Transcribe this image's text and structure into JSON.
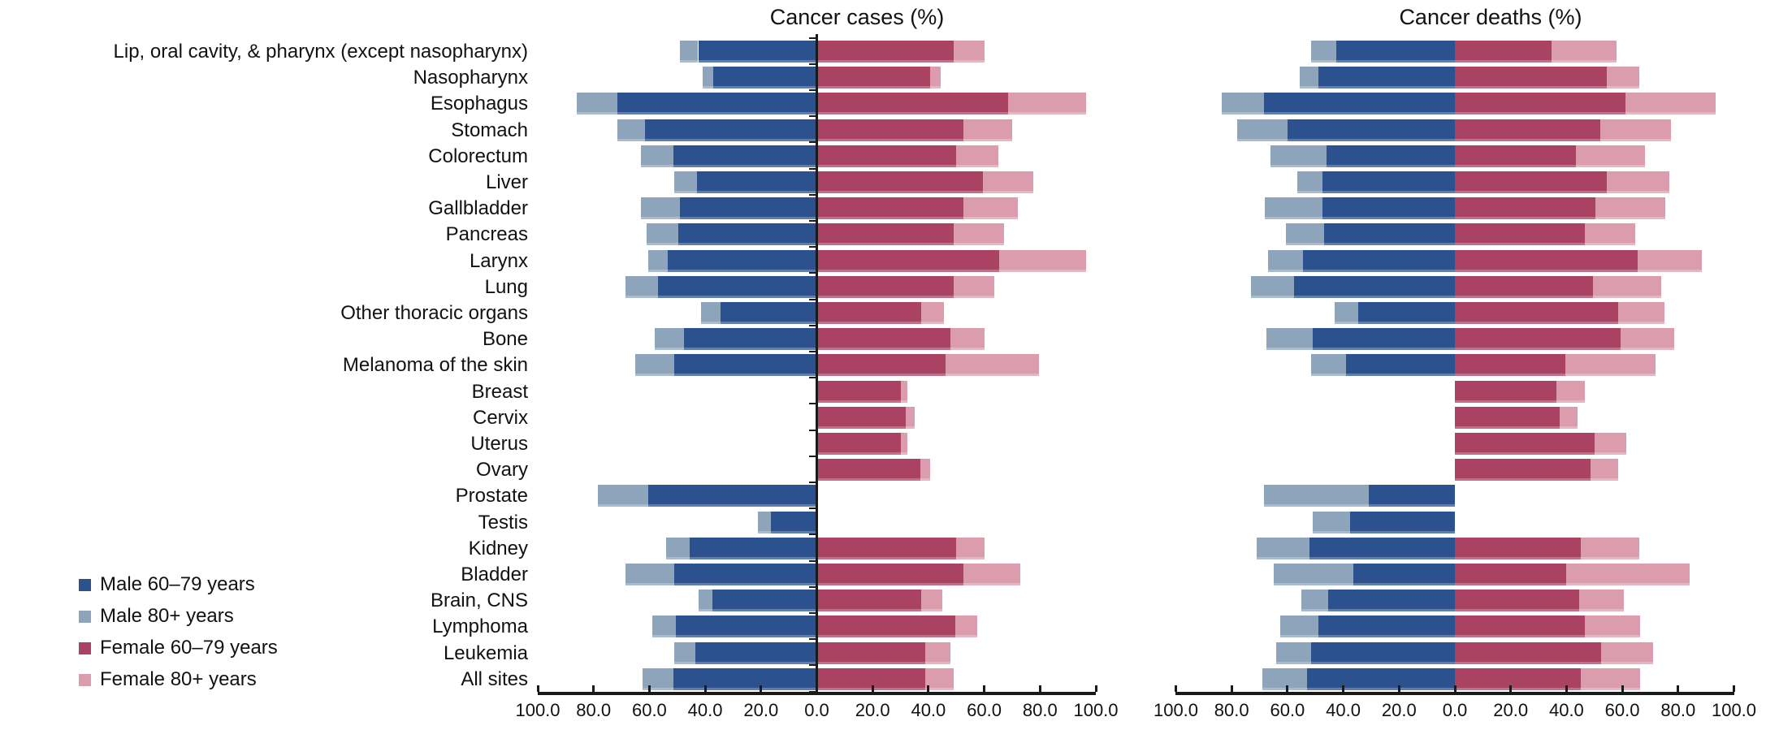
{
  "chart_data": {
    "type": "bar",
    "variant": "diverging-stacked-horizontal-tornado",
    "panels": [
      {
        "key": "cases",
        "title": "Cancer cases (%)"
      },
      {
        "key": "deaths",
        "title": "Cancer deaths (%)"
      }
    ],
    "legend": [
      {
        "label": "Male 60–79 years",
        "color": "#2B528F"
      },
      {
        "label": "Male 80+ years",
        "color": "#8EA4BA"
      },
      {
        "label": "Female 60–79 years",
        "color": "#A94263"
      },
      {
        "label": "Female 80+ years",
        "color": "#DB9CAE"
      }
    ],
    "legend_position": "bottom-left",
    "x_axis": {
      "range": [
        -100,
        100
      ],
      "tick_step": 20,
      "tick_labels": [
        "100.0",
        "80.0",
        "60.0",
        "40.0",
        "20.0",
        "0.0",
        "20.0",
        "40.0",
        "60.0",
        "80.0",
        "100.0"
      ]
    },
    "value_meaning": "percent of cancer cases/deaths occurring in each sex and age group; male bars extend left of zero, female bars extend right",
    "rows": [
      {
        "label": "Lip, oral cavity, & pharynx (except nasopharynx)",
        "cases": {
          "male": [
            42.5,
            6.5
          ],
          "female": [
            49.0,
            11.0
          ]
        },
        "deaths": {
          "male": [
            42.5,
            9.0
          ],
          "female": [
            34.5,
            23.5
          ]
        }
      },
      {
        "label": "Nasopharynx",
        "cases": {
          "male": [
            37.0,
            4.0
          ],
          "female": [
            40.5,
            4.0
          ]
        },
        "deaths": {
          "male": [
            49.0,
            6.5
          ],
          "female": [
            54.5,
            11.5
          ]
        }
      },
      {
        "label": "Esophagus",
        "cases": {
          "male": [
            71.5,
            14.5
          ],
          "female": [
            68.5,
            28.0
          ]
        },
        "deaths": {
          "male": [
            68.5,
            15.0
          ],
          "female": [
            61.0,
            32.5
          ]
        }
      },
      {
        "label": "Stomach",
        "cases": {
          "male": [
            61.5,
            10.0
          ],
          "female": [
            52.5,
            17.5
          ]
        },
        "deaths": {
          "male": [
            60.0,
            18.0
          ],
          "female": [
            52.0,
            25.5
          ]
        }
      },
      {
        "label": "Colorectum",
        "cases": {
          "male": [
            51.5,
            11.5
          ],
          "female": [
            50.0,
            15.0
          ]
        },
        "deaths": {
          "male": [
            46.0,
            20.0
          ],
          "female": [
            43.5,
            24.5
          ]
        }
      },
      {
        "label": "Liver",
        "cases": {
          "male": [
            43.0,
            8.0
          ],
          "female": [
            59.5,
            18.0
          ]
        },
        "deaths": {
          "male": [
            47.5,
            9.0
          ],
          "female": [
            54.5,
            22.5
          ]
        }
      },
      {
        "label": "Gallbladder",
        "cases": {
          "male": [
            49.0,
            14.0
          ],
          "female": [
            52.5,
            19.5
          ]
        },
        "deaths": {
          "male": [
            47.5,
            20.5
          ],
          "female": [
            50.5,
            25.0
          ]
        }
      },
      {
        "label": "Pancreas",
        "cases": {
          "male": [
            49.5,
            11.5
          ],
          "female": [
            49.0,
            18.0
          ]
        },
        "deaths": {
          "male": [
            47.0,
            13.5
          ],
          "female": [
            46.5,
            18.0
          ]
        }
      },
      {
        "label": "Larynx",
        "cases": {
          "male": [
            53.5,
            7.0
          ],
          "female": [
            65.5,
            31.0
          ]
        },
        "deaths": {
          "male": [
            54.5,
            12.5
          ],
          "female": [
            65.5,
            23.0
          ]
        }
      },
      {
        "label": "Lung",
        "cases": {
          "male": [
            57.0,
            11.5
          ],
          "female": [
            49.0,
            14.5
          ]
        },
        "deaths": {
          "male": [
            57.5,
            15.5
          ],
          "female": [
            49.5,
            24.5
          ]
        }
      },
      {
        "label": "Other thoracic organs",
        "cases": {
          "male": [
            34.5,
            7.0
          ],
          "female": [
            37.5,
            8.0
          ]
        },
        "deaths": {
          "male": [
            34.5,
            8.5
          ],
          "female": [
            58.5,
            16.5
          ]
        }
      },
      {
        "label": "Bone",
        "cases": {
          "male": [
            47.5,
            10.5
          ],
          "female": [
            48.0,
            12.0
          ]
        },
        "deaths": {
          "male": [
            51.0,
            16.5
          ],
          "female": [
            59.5,
            19.0
          ]
        }
      },
      {
        "label": "Melanoma of the skin",
        "cases": {
          "male": [
            51.0,
            14.0
          ],
          "female": [
            46.0,
            33.5
          ]
        },
        "deaths": {
          "male": [
            39.0,
            12.5
          ],
          "female": [
            39.5,
            32.5
          ]
        }
      },
      {
        "label": "Breast",
        "cases": {
          "male": null,
          "female": [
            30.0,
            2.5
          ]
        },
        "deaths": {
          "male": null,
          "female": [
            36.5,
            10.0
          ]
        }
      },
      {
        "label": "Cervix",
        "cases": {
          "male": null,
          "female": [
            32.0,
            3.0
          ]
        },
        "deaths": {
          "male": null,
          "female": [
            37.5,
            6.5
          ]
        }
      },
      {
        "label": "Uterus",
        "cases": {
          "male": null,
          "female": [
            30.0,
            2.5
          ]
        },
        "deaths": {
          "male": null,
          "female": [
            50.0,
            11.5
          ]
        }
      },
      {
        "label": "Ovary",
        "cases": {
          "male": null,
          "female": [
            37.0,
            3.5
          ]
        },
        "deaths": {
          "male": null,
          "female": [
            48.5,
            10.0
          ]
        }
      },
      {
        "label": "Prostate",
        "cases": {
          "male": [
            60.5,
            18.0
          ],
          "female": null
        },
        "deaths": {
          "male": [
            31.0,
            37.5
          ],
          "female": null
        }
      },
      {
        "label": "Testis",
        "cases": {
          "male": [
            16.5,
            4.5
          ],
          "female": null
        },
        "deaths": {
          "male": [
            37.5,
            13.5
          ],
          "female": null
        }
      },
      {
        "label": "Kidney",
        "cases": {
          "male": [
            45.5,
            8.5
          ],
          "female": [
            50.0,
            10.0
          ]
        },
        "deaths": {
          "male": [
            52.0,
            19.0
          ],
          "female": [
            45.0,
            21.0
          ]
        }
      },
      {
        "label": "Bladder",
        "cases": {
          "male": [
            51.0,
            17.5
          ],
          "female": [
            52.5,
            20.5
          ]
        },
        "deaths": {
          "male": [
            36.5,
            28.5
          ],
          "female": [
            40.0,
            44.0
          ]
        }
      },
      {
        "label": "Brain, CNS",
        "cases": {
          "male": [
            37.5,
            5.0
          ],
          "female": [
            37.5,
            7.5
          ]
        },
        "deaths": {
          "male": [
            45.5,
            9.5
          ],
          "female": [
            44.5,
            16.0
          ]
        }
      },
      {
        "label": "Lymphoma",
        "cases": {
          "male": [
            50.5,
            8.5
          ],
          "female": [
            49.5,
            8.0
          ]
        },
        "deaths": {
          "male": [
            49.0,
            13.5
          ],
          "female": [
            46.5,
            20.0
          ]
        }
      },
      {
        "label": "Leukemia",
        "cases": {
          "male": [
            43.5,
            7.5
          ],
          "female": [
            39.0,
            9.0
          ]
        },
        "deaths": {
          "male": [
            51.5,
            12.5
          ],
          "female": [
            52.5,
            18.5
          ]
        }
      },
      {
        "label": "All sites",
        "cases": {
          "male": [
            51.5,
            11.0
          ],
          "female": [
            39.0,
            10.0
          ]
        },
        "deaths": {
          "male": [
            53.0,
            16.0
          ],
          "female": [
            45.0,
            21.5
          ]
        }
      }
    ]
  }
}
